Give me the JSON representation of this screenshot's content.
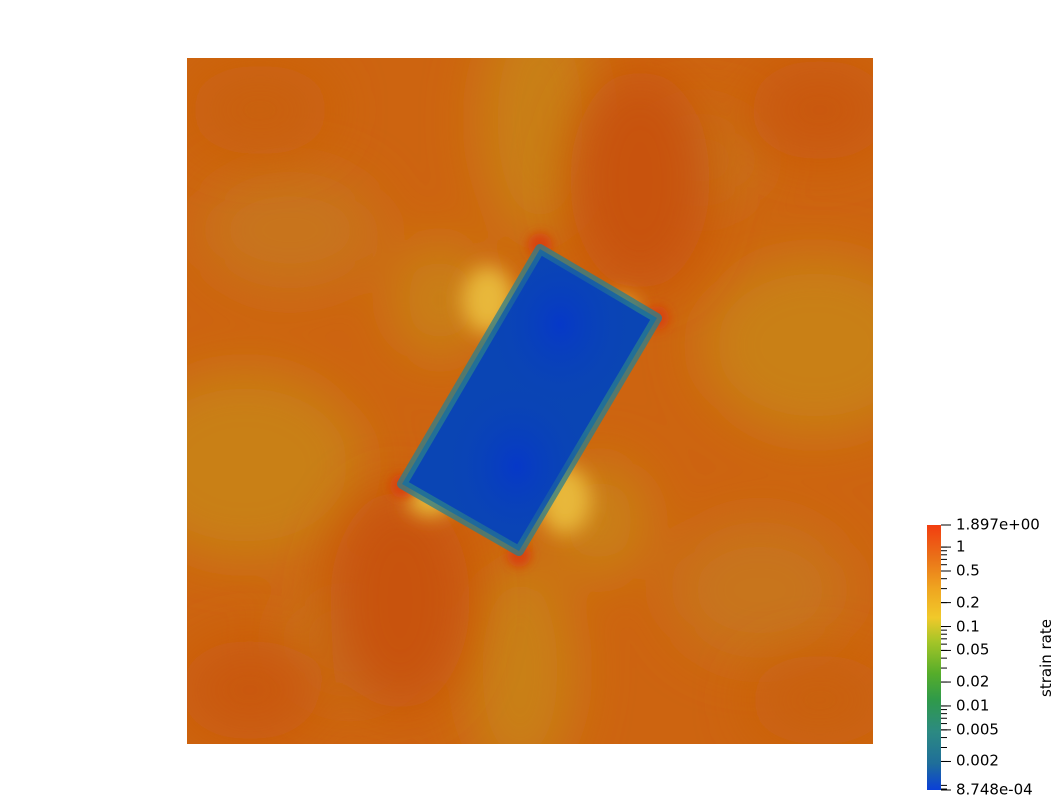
{
  "scalar_bar": {
    "title": "strain rate",
    "max_label": "1.897e+00",
    "min_label": "8.748e-04",
    "min_value": 0.0008748,
    "max_value": 1.897,
    "scale": "log",
    "tick_labels": [
      {
        "value": 1,
        "text": "1"
      },
      {
        "value": 0.5,
        "text": "0.5"
      },
      {
        "value": 0.2,
        "text": "0.2"
      },
      {
        "value": 0.1,
        "text": "0.1"
      },
      {
        "value": 0.05,
        "text": "0.05"
      },
      {
        "value": 0.02,
        "text": "0.02"
      },
      {
        "value": 0.01,
        "text": "0.01"
      },
      {
        "value": 0.005,
        "text": "0.005"
      },
      {
        "value": 0.002,
        "text": "0.002"
      }
    ],
    "colormap": [
      "#0a3fd8",
      "#1f6e9a",
      "#2c8a82",
      "#2f9a4a",
      "#56ad2a",
      "#a5c528",
      "#f0c92a",
      "#efa520",
      "#ea7018",
      "#f23d10"
    ]
  },
  "colors": {
    "background_field": "#cd6410",
    "inclusion": "#0a45b4"
  }
}
